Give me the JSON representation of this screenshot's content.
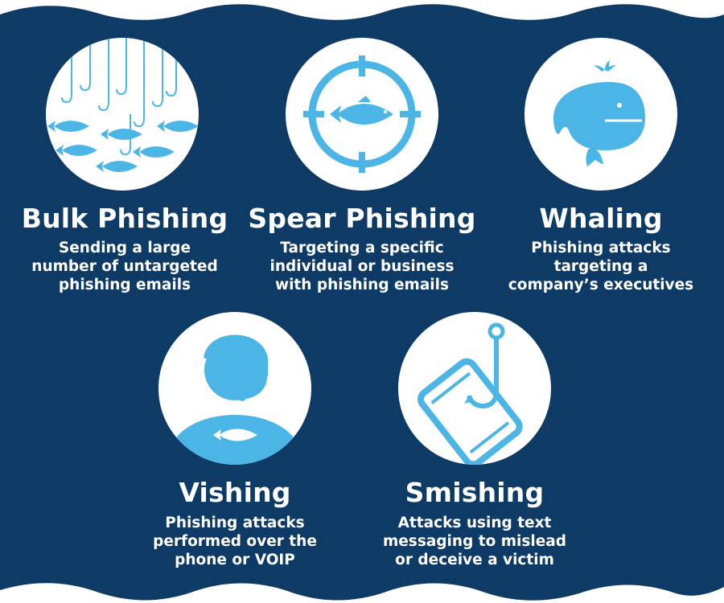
{
  "colors": {
    "background": "#0e3a66",
    "accent": "#4bb6e6",
    "circle": "#ffffff",
    "text": "#ffffff"
  },
  "items": [
    {
      "title": "Bulk Phishing",
      "desc": [
        "Sending a large",
        "number of untargeted",
        "phishing emails"
      ],
      "icon": "fish-and-hooks-icon"
    },
    {
      "title": "Spear Phishing",
      "desc": [
        "Targeting a specific",
        "individual or business",
        "with phishing emails"
      ],
      "icon": "crosshair-fish-icon"
    },
    {
      "title": "Whaling",
      "desc": [
        "Phishing attacks",
        "targeting a",
        "company’s executives"
      ],
      "icon": "whale-icon"
    },
    {
      "title": "Vishing",
      "desc": [
        "Phishing attacks",
        "performed over the",
        "phone or VOIP"
      ],
      "icon": "headset-person-icon"
    },
    {
      "title": "Smishing",
      "desc": [
        "Attacks using text",
        "messaging to mislead",
        "or deceive a victim"
      ],
      "icon": "phone-hook-icon"
    }
  ]
}
